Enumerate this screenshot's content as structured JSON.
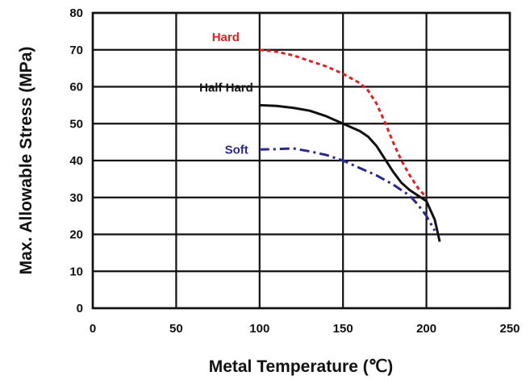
{
  "chart_data": {
    "type": "line",
    "title": "",
    "xlabel": "Metal Temperature (℃)",
    "ylabel": "Max. Allowable Stress (MPa)",
    "xlim": [
      0,
      250
    ],
    "ylim": [
      0,
      80
    ],
    "x_ticks": [
      "0",
      "50",
      "100",
      "150",
      "200",
      "250"
    ],
    "y_ticks": [
      "0",
      "10",
      "20",
      "30",
      "40",
      "50",
      "60",
      "70",
      "80"
    ],
    "grid": true,
    "series": [
      {
        "name": "Hard",
        "color": "#e02020",
        "line_style": "dotted",
        "x": [
          100,
          110,
          120,
          130,
          140,
          150,
          160,
          165,
          170,
          175,
          180,
          185,
          190,
          195,
          200
        ],
        "y": [
          70,
          69.5,
          68.5,
          67,
          65.5,
          63.5,
          61,
          59,
          55.5,
          50.5,
          45,
          40,
          36,
          32.5,
          30
        ]
      },
      {
        "name": "Half Hard",
        "color": "#111111",
        "line_style": "solid",
        "x": [
          100,
          110,
          120,
          130,
          140,
          150,
          160,
          165,
          170,
          175,
          180,
          185,
          190,
          195,
          200,
          205,
          208
        ],
        "y": [
          55,
          54.8,
          54.3,
          53.5,
          52,
          50,
          48,
          46.5,
          44,
          40.5,
          37,
          34,
          32,
          30.5,
          29,
          24,
          18
        ]
      },
      {
        "name": "Soft",
        "color": "#2a2a8a",
        "line_style": "dash-dot",
        "x": [
          100,
          110,
          120,
          130,
          140,
          150,
          160,
          170,
          180,
          185,
          190,
          195,
          200,
          205
        ],
        "y": [
          43,
          43.1,
          43.3,
          42.5,
          41.5,
          40,
          38,
          36,
          33.5,
          32,
          30.5,
          28,
          25,
          21
        ]
      }
    ]
  }
}
